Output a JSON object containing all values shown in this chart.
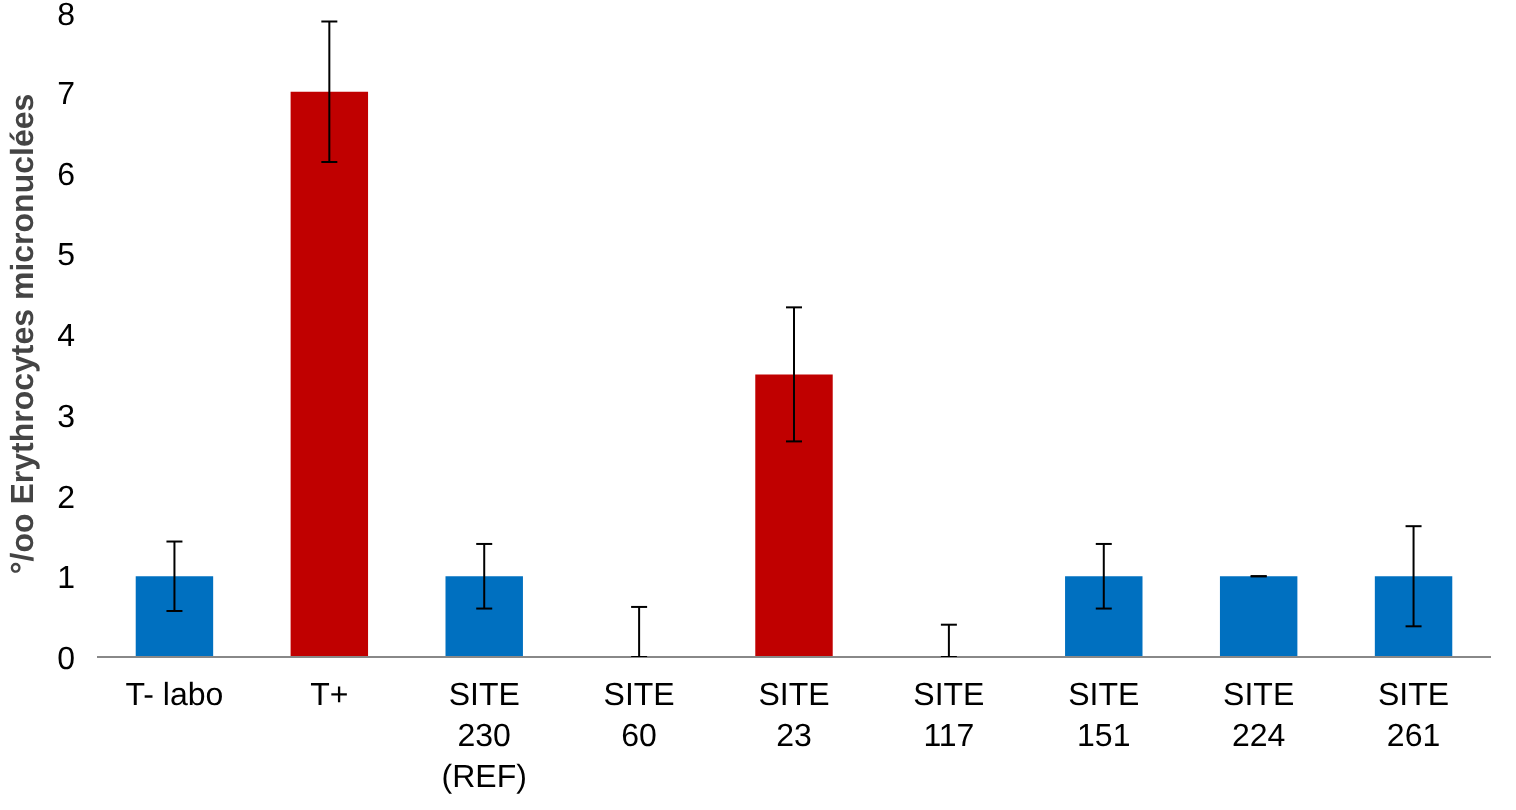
{
  "chart_data": {
    "type": "bar",
    "ylabel": "°/oo Erythrocytes micronuclées",
    "categories": [
      "T- labo",
      "T+",
      "SITE\n230\n(REF)",
      "SITE\n60",
      "SITE\n23",
      "SITE\n117",
      "SITE\n151",
      "SITE\n224",
      "SITE\n261"
    ],
    "values": [
      1,
      7,
      1,
      0,
      3.5,
      0,
      1,
      1,
      1
    ],
    "colors": [
      "#0070c0",
      "#c00000",
      "#0070c0",
      "#0070c0",
      "#c00000",
      "#0070c0",
      "#0070c0",
      "#0070c0",
      "#0070c0"
    ],
    "errors": [
      0.43,
      0.87,
      0.4,
      [
        0,
        0.62
      ],
      0.83,
      [
        0,
        0.4
      ],
      0.4,
      0,
      0.62
    ],
    "ylim": [
      0,
      8
    ],
    "yticks": [
      0,
      1,
      2,
      3,
      4,
      5,
      6,
      7,
      8
    ],
    "grid": false
  }
}
